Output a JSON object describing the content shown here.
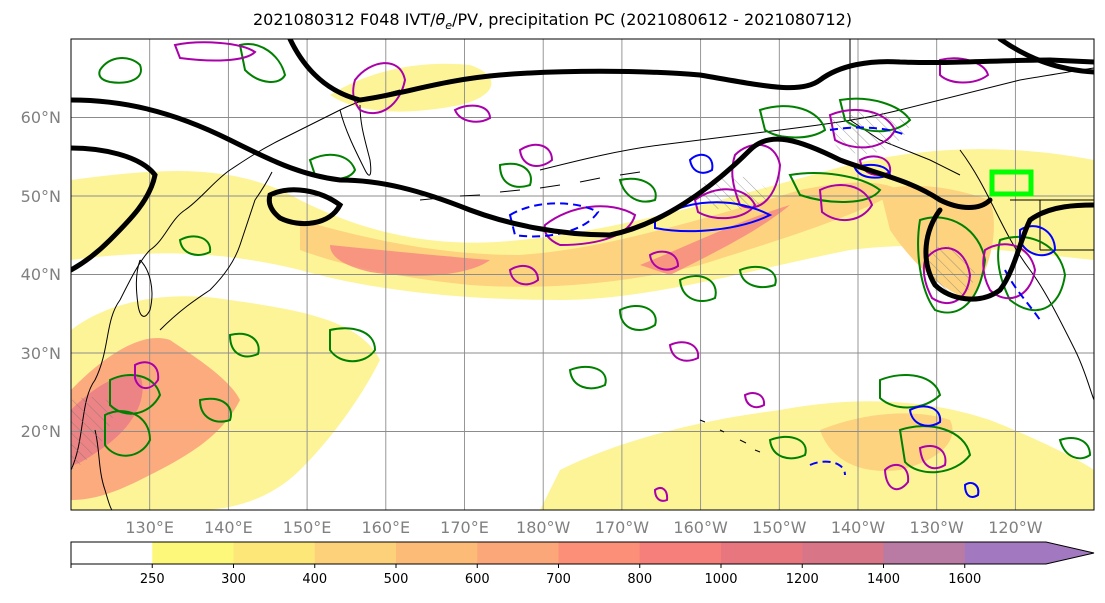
{
  "title": "2021080312 F048 IVT/θe/PV, precipitation PC (2021080612 - 2021080712)",
  "title_parts": {
    "prefix": "2021080312 F048 IVT/",
    "theta": "θ",
    "theta_sub": "e",
    "suffix": "/PV, precipitation PC (2021080612 - 2021080712)"
  },
  "map": {
    "projection": "PlateCarree",
    "lon_range": [
      120,
      250
    ],
    "lat_range": [
      10,
      70
    ],
    "lat_labels": [
      "20°N",
      "30°N",
      "40°N",
      "50°N",
      "60°N"
    ],
    "lon_labels": [
      "130°E",
      "140°E",
      "150°E",
      "160°E",
      "170°E",
      "180°W",
      "170°W",
      "160°W",
      "150°W",
      "140°W",
      "130°W",
      "120°W"
    ],
    "gridlines": true,
    "target_box": {
      "lon": [
        235,
        240
      ],
      "lat": [
        50,
        53
      ],
      "color": "#00ff00"
    }
  },
  "colorbar": {
    "levels": [
      "250",
      "300",
      "400",
      "500",
      "600",
      "700",
      "800",
      "1000",
      "1200",
      "1400",
      "1600"
    ],
    "colors": [
      "#ffffff",
      "#fdf87a",
      "#fde779",
      "#fdd179",
      "#fdbb78",
      "#fca779",
      "#fb8f77",
      "#f67f7c",
      "#e8767f",
      "#d87688",
      "#b97aa4",
      "#a279c0"
    ],
    "extend": "max"
  },
  "contour_colors": {
    "theta_e_pv": "#000000",
    "precip_pos": "#008000",
    "precip_neg": "#aa00aa",
    "pv": "#0000ff"
  }
}
